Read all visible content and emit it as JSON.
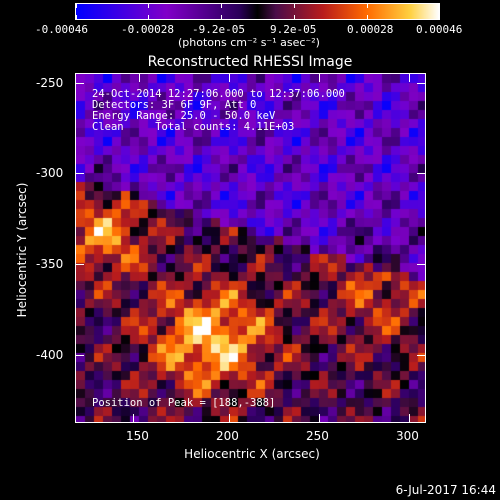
{
  "colorbar": {
    "tick_labels": [
      "-0.00046",
      "-0.00028",
      "-9.2e-05",
      "9.2e-05",
      "0.00028",
      "0.00046"
    ],
    "units_label": "(photons cm⁻² s⁻¹ asec⁻²)"
  },
  "chart_data": {
    "type": "heatmap",
    "title": "Reconstructed RHESSI Image",
    "xlabel": "Heliocentric X (arcsec)",
    "ylabel": "Heliocentric Y (arcsec)",
    "xlim": [
      117,
      308
    ],
    "ylim": [
      -436,
      -244
    ],
    "x_ticks": [
      "150",
      "200",
      "250",
      "300"
    ],
    "y_ticks": [
      "-250",
      "-300",
      "-350",
      "-400"
    ],
    "color_range": [
      -0.00046,
      0.00046
    ],
    "annotations": {
      "time_range": "24-Oct-2014 12:27:06.000 to 12:37:06.000",
      "detectors": "Detectors: 3F 6F 9F, Att 0",
      "energy": "Energy Range: 25.0 - 50.0 keV",
      "clean": "Clean     Total counts: 4.11E+03",
      "peak": "Position of Peak = [188,-388]"
    },
    "peak": [
      188,
      -388
    ]
  },
  "footer": {
    "date": "6-Jul-2017 16:44"
  }
}
